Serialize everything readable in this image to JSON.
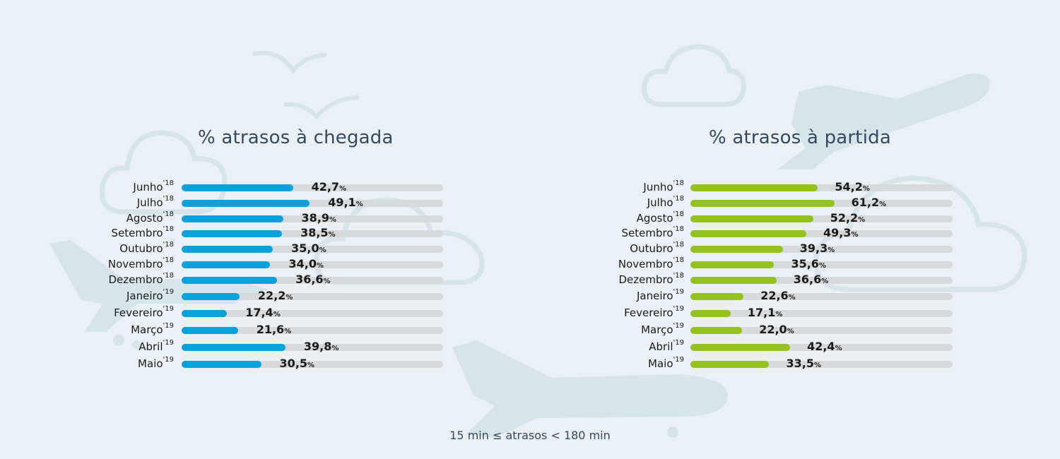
{
  "footnote": "15 min ≤ atrasos < 180 min",
  "colors": {
    "arrivals": "#0aa0dc",
    "departures": "#94c11f",
    "track": "#d7d9da",
    "background": "#eaf0f3"
  },
  "chart_data": [
    {
      "type": "bar",
      "title": "% atrasos à chegada",
      "categories": [
        {
          "month": "Junho",
          "year": "'18"
        },
        {
          "month": "Julho",
          "year": "'18"
        },
        {
          "month": "Agosto",
          "year": "'18"
        },
        {
          "month": "Setembro",
          "year": "'18"
        },
        {
          "month": "Outubro",
          "year": "'18"
        },
        {
          "month": "Novembro",
          "year": "'18"
        },
        {
          "month": "Dezembro",
          "year": "'18"
        },
        {
          "month": "Janeiro",
          "year": "'19"
        },
        {
          "month": "Fevereiro",
          "year": "'19"
        },
        {
          "month": "Março",
          "year": "'19"
        },
        {
          "month": "Abril",
          "year": "'19"
        },
        {
          "month": "Maio",
          "year": "'19"
        }
      ],
      "values": [
        42.7,
        49.1,
        38.9,
        38.5,
        35.0,
        34.0,
        36.6,
        22.2,
        17.4,
        21.6,
        39.8,
        30.5
      ],
      "labels": [
        "42,7",
        "49,1",
        "38,9",
        "38,5",
        "35,0",
        "34,0",
        "36,6",
        "22,2",
        "17,4",
        "21,6",
        "39,8",
        "30,5"
      ],
      "unit": "%",
      "xlim": [
        0,
        100
      ],
      "color": "#0aa0dc"
    },
    {
      "type": "bar",
      "title": "% atrasos à partida",
      "categories": [
        {
          "month": "Junho",
          "year": "'18"
        },
        {
          "month": "Julho",
          "year": "'18"
        },
        {
          "month": "Agosto",
          "year": "'18"
        },
        {
          "month": "Setembro",
          "year": "'18"
        },
        {
          "month": "Outubro",
          "year": "'18"
        },
        {
          "month": "Novembro",
          "year": "'18"
        },
        {
          "month": "Dezembro",
          "year": "'18"
        },
        {
          "month": "Janeiro",
          "year": "'19"
        },
        {
          "month": "Fevereiro",
          "year": "'19"
        },
        {
          "month": "Março",
          "year": "'19"
        },
        {
          "month": "Abril",
          "year": "'19"
        },
        {
          "month": "Maio",
          "year": "'19"
        }
      ],
      "values": [
        54.2,
        61.2,
        52.2,
        49.3,
        39.3,
        35.6,
        36.6,
        22.6,
        17.1,
        22.0,
        42.4,
        33.5
      ],
      "labels": [
        "54,2",
        "61,2",
        "52,2",
        "49,3",
        "39,3",
        "35,6",
        "36,6",
        "22,6",
        "17,1",
        "22,0",
        "42,4",
        "33,5"
      ],
      "unit": "%",
      "xlim": [
        0,
        100
      ],
      "color": "#94c11f"
    }
  ]
}
